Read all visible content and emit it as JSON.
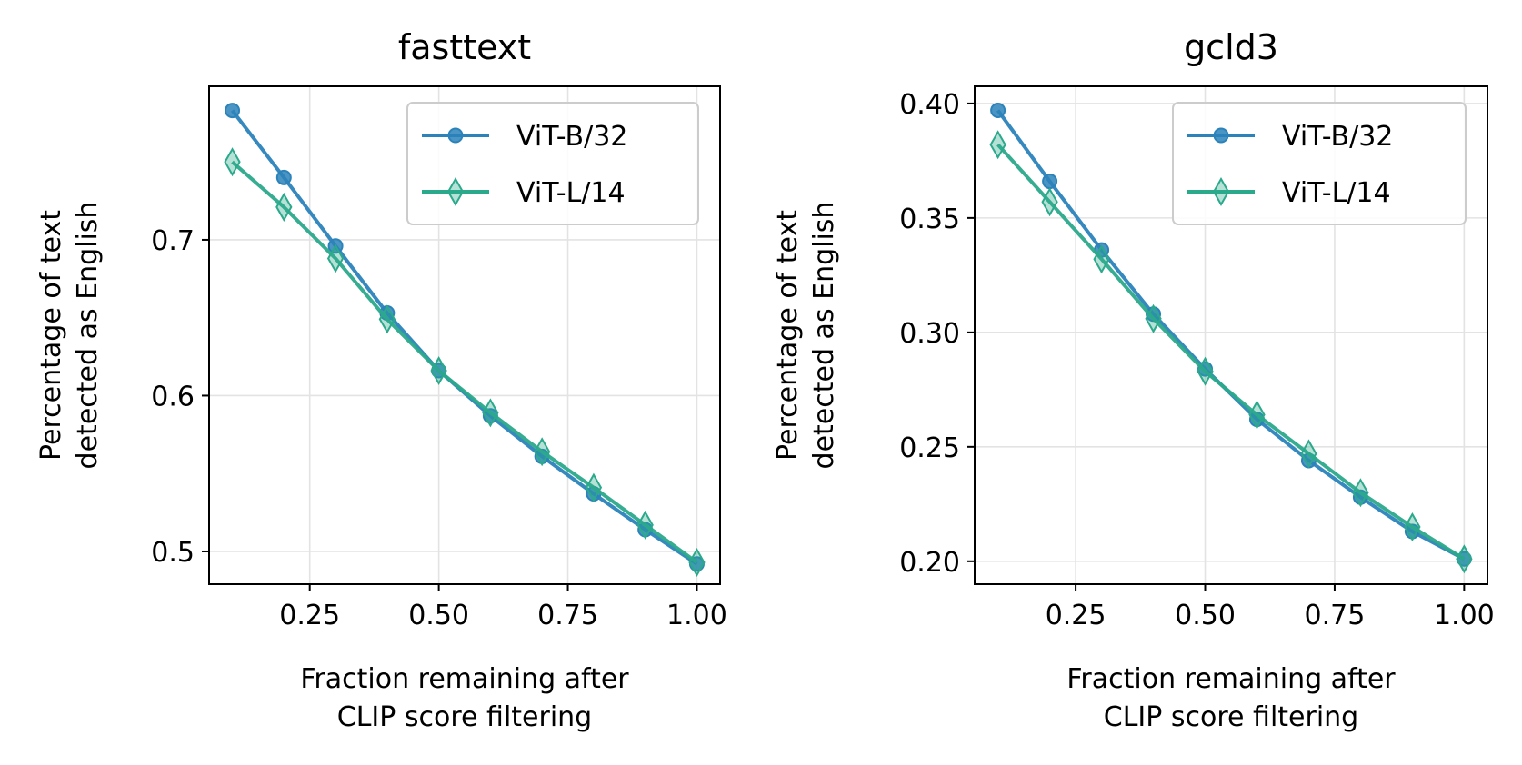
{
  "chart_data": [
    {
      "type": "line",
      "title": "fasttext",
      "xlabel": [
        "Fraction remaining after",
        "CLIP score filtering"
      ],
      "ylabel": [
        "Percentage of text",
        "detected as English"
      ],
      "xlim": [
        0.055,
        1.045
      ],
      "ylim": [
        0.479,
        0.7985
      ],
      "xticks": [
        0.25,
        0.5,
        0.75,
        1.0
      ],
      "xtick_labels": [
        "0.25",
        "0.50",
        "0.75",
        "1.00"
      ],
      "yticks": [
        0.5,
        0.6,
        0.7
      ],
      "ytick_labels": [
        "0.5",
        "0.6",
        "0.7"
      ],
      "grid": true,
      "legend_position": "top-right",
      "x": [
        0.1,
        0.2,
        0.3,
        0.4,
        0.5,
        0.6,
        0.7,
        0.8,
        0.9,
        1.0
      ],
      "series": [
        {
          "name": "ViT-B/32",
          "color": "#2b83ba",
          "marker": "circle",
          "values": [
            0.783,
            0.74,
            0.696,
            0.653,
            0.616,
            0.587,
            0.561,
            0.537,
            0.514,
            0.492
          ]
        },
        {
          "name": "ViT-L/14",
          "color": "#2ba98b",
          "marker": "thin-diamond",
          "values": [
            0.75,
            0.721,
            0.688,
            0.649,
            0.616,
            0.589,
            0.564,
            0.541,
            0.517,
            0.493
          ]
        }
      ]
    },
    {
      "type": "line",
      "title": "gcld3",
      "xlabel": [
        "Fraction remaining after",
        "CLIP score filtering"
      ],
      "ylabel": [
        "Percentage of text",
        "detected as English"
      ],
      "xlim": [
        0.055,
        1.045
      ],
      "ylim": [
        0.19,
        0.4075
      ],
      "xticks": [
        0.25,
        0.5,
        0.75,
        1.0
      ],
      "xtick_labels": [
        "0.25",
        "0.50",
        "0.75",
        "1.00"
      ],
      "yticks": [
        0.2,
        0.25,
        0.3,
        0.35,
        0.4
      ],
      "ytick_labels": [
        "0.20",
        "0.25",
        "0.30",
        "0.35",
        "0.40"
      ],
      "grid": true,
      "legend_position": "top-right",
      "x": [
        0.1,
        0.2,
        0.3,
        0.4,
        0.5,
        0.6,
        0.7,
        0.8,
        0.9,
        1.0
      ],
      "series": [
        {
          "name": "ViT-B/32",
          "color": "#2b83ba",
          "marker": "circle",
          "values": [
            0.397,
            0.366,
            0.336,
            0.308,
            0.284,
            0.262,
            0.244,
            0.228,
            0.213,
            0.201
          ]
        },
        {
          "name": "ViT-L/14",
          "color": "#2ba98b",
          "marker": "thin-diamond",
          "values": [
            0.382,
            0.357,
            0.332,
            0.306,
            0.283,
            0.264,
            0.247,
            0.23,
            0.215,
            0.201
          ]
        }
      ]
    }
  ]
}
